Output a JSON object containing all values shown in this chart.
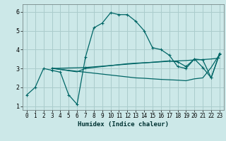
{
  "xlabel": "Humidex (Indice chaleur)",
  "bg_color": "#cce8e8",
  "grid_color": "#aacccc",
  "line_color": "#006666",
  "xlim": [
    -0.5,
    23.5
  ],
  "ylim": [
    0.8,
    6.4
  ],
  "yticks": [
    1,
    2,
    3,
    4,
    5,
    6
  ],
  "xticks": [
    0,
    1,
    2,
    3,
    4,
    5,
    6,
    7,
    8,
    9,
    10,
    11,
    12,
    13,
    14,
    15,
    16,
    17,
    18,
    19,
    20,
    21,
    22,
    23
  ],
  "line1_x": [
    0,
    1,
    2,
    3,
    4,
    5,
    6,
    7,
    8,
    9,
    10,
    11,
    12,
    13,
    14,
    15,
    16,
    17,
    18,
    19,
    20,
    21,
    22,
    23
  ],
  "line1_y": [
    1.6,
    2.0,
    3.0,
    2.9,
    2.8,
    1.6,
    1.1,
    3.6,
    5.15,
    5.4,
    5.95,
    5.85,
    5.85,
    5.5,
    5.0,
    4.1,
    4.0,
    3.7,
    3.1,
    3.0,
    3.5,
    3.05,
    2.5,
    3.8
  ],
  "line2_x": [
    3,
    4,
    5,
    6,
    7,
    8,
    9,
    10,
    11,
    12,
    13,
    14,
    15,
    16,
    17,
    18,
    19,
    20,
    21,
    22,
    23
  ],
  "line2_y": [
    3.02,
    2.95,
    2.88,
    2.82,
    3.0,
    3.05,
    3.1,
    3.15,
    3.2,
    3.25,
    3.28,
    3.3,
    3.32,
    3.35,
    3.38,
    3.4,
    3.42,
    3.45,
    3.47,
    3.5,
    3.55
  ],
  "line3_x": [
    3,
    4,
    5,
    6,
    7,
    8,
    9,
    10,
    11,
    12,
    13,
    14,
    15,
    16,
    17,
    18,
    19,
    20,
    21,
    22,
    23
  ],
  "line3_y": [
    3.0,
    2.95,
    2.9,
    2.85,
    2.8,
    2.75,
    2.7,
    2.65,
    2.6,
    2.55,
    2.5,
    2.48,
    2.45,
    2.42,
    2.4,
    2.38,
    2.35,
    2.45,
    2.5,
    3.05,
    3.75
  ],
  "line4_x": [
    3,
    7,
    17,
    18,
    19,
    20,
    21,
    22,
    23
  ],
  "line4_y": [
    3.0,
    3.05,
    3.4,
    3.35,
    3.1,
    3.5,
    3.45,
    2.5,
    3.75
  ],
  "xlabel_fontsize": 6.5,
  "tick_fontsize": 5.5
}
